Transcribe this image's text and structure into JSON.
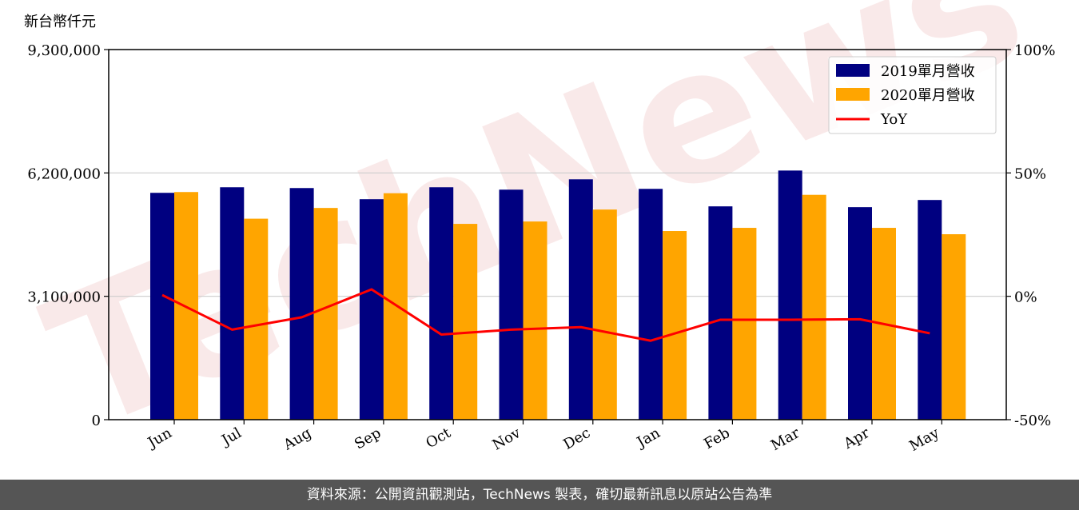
{
  "watermark": "TechNews",
  "footer": {
    "text": "資料來源：公開資訊觀測站，TechNews 製表，確切最新訊息以原站公告為準"
  },
  "chart_data": {
    "type": "bar",
    "ylabel": "新台幣仟元",
    "categories": [
      "Jun",
      "Jul",
      "Aug",
      "Sep",
      "Oct",
      "Nov",
      "Dec",
      "Jan",
      "Feb",
      "Mar",
      "Apr",
      "May"
    ],
    "series": [
      {
        "name": "2019單月營收",
        "type": "bar",
        "color": "#000080",
        "values": [
          5700000,
          5840000,
          5820000,
          5540000,
          5840000,
          5780000,
          6040000,
          5800000,
          5360000,
          6260000,
          5340000,
          5520000
        ]
      },
      {
        "name": "2020單月營收",
        "type": "bar",
        "color": "#ffa500",
        "values": [
          5720000,
          5050000,
          5320000,
          5690000,
          4920000,
          4980000,
          5280000,
          4740000,
          4820000,
          5650000,
          4820000,
          4660000
        ]
      },
      {
        "name": "YoY",
        "type": "line",
        "axis": "right",
        "color": "#ff0000",
        "values": [
          0.5,
          -13.5,
          -8.5,
          2.8,
          -15.5,
          -13.5,
          -12.5,
          -18.0,
          -9.5,
          -9.5,
          -9.3,
          -15.0
        ]
      }
    ],
    "left_axis": {
      "ylim": [
        0,
        9300000
      ],
      "ticks": [
        0,
        3100000,
        6200000,
        9300000
      ],
      "tick_labels": [
        "0",
        "3,100,000",
        "6,200,000",
        "9,300,000"
      ]
    },
    "right_axis": {
      "ylim": [
        -50,
        100
      ],
      "ticks": [
        -50,
        0,
        50,
        100
      ],
      "tick_labels": [
        "-50%",
        "0%",
        "50%",
        "100%"
      ]
    },
    "grid": "horizontal",
    "legend_position": "top-right"
  }
}
